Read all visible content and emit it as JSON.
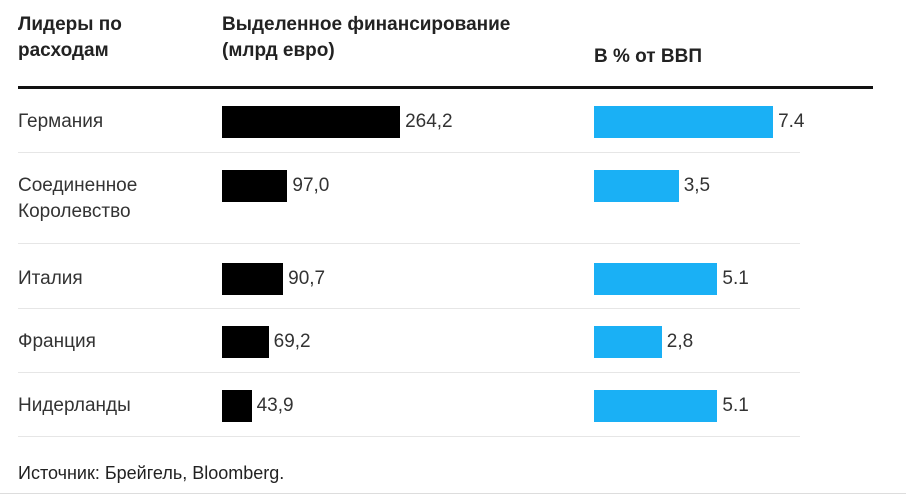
{
  "chart_data": {
    "type": "bar",
    "category_header": "Лидеры по расходам",
    "categories": [
      "Германия",
      "Соединенное Королевство",
      "Италия",
      "Франция",
      "Нидерланды"
    ],
    "series": [
      {
        "name": "Выделенное финансирование (млрд евро)",
        "color": "#000000",
        "values": [
          264.2,
          97.0,
          90.7,
          69.2,
          43.9
        ],
        "value_labels": [
          "264,2",
          "97,0",
          "90,7",
          "69,2",
          "43,9"
        ]
      },
      {
        "name": "В % от ВВП",
        "color": "#1ab0f5",
        "values": [
          7.4,
          3.5,
          5.1,
          2.8,
          5.1
        ],
        "value_labels": [
          "7.4",
          "3,5",
          "5.1",
          "2,8",
          "5.1"
        ]
      }
    ],
    "source": "Источник: Брейгель, Bloomberg."
  }
}
